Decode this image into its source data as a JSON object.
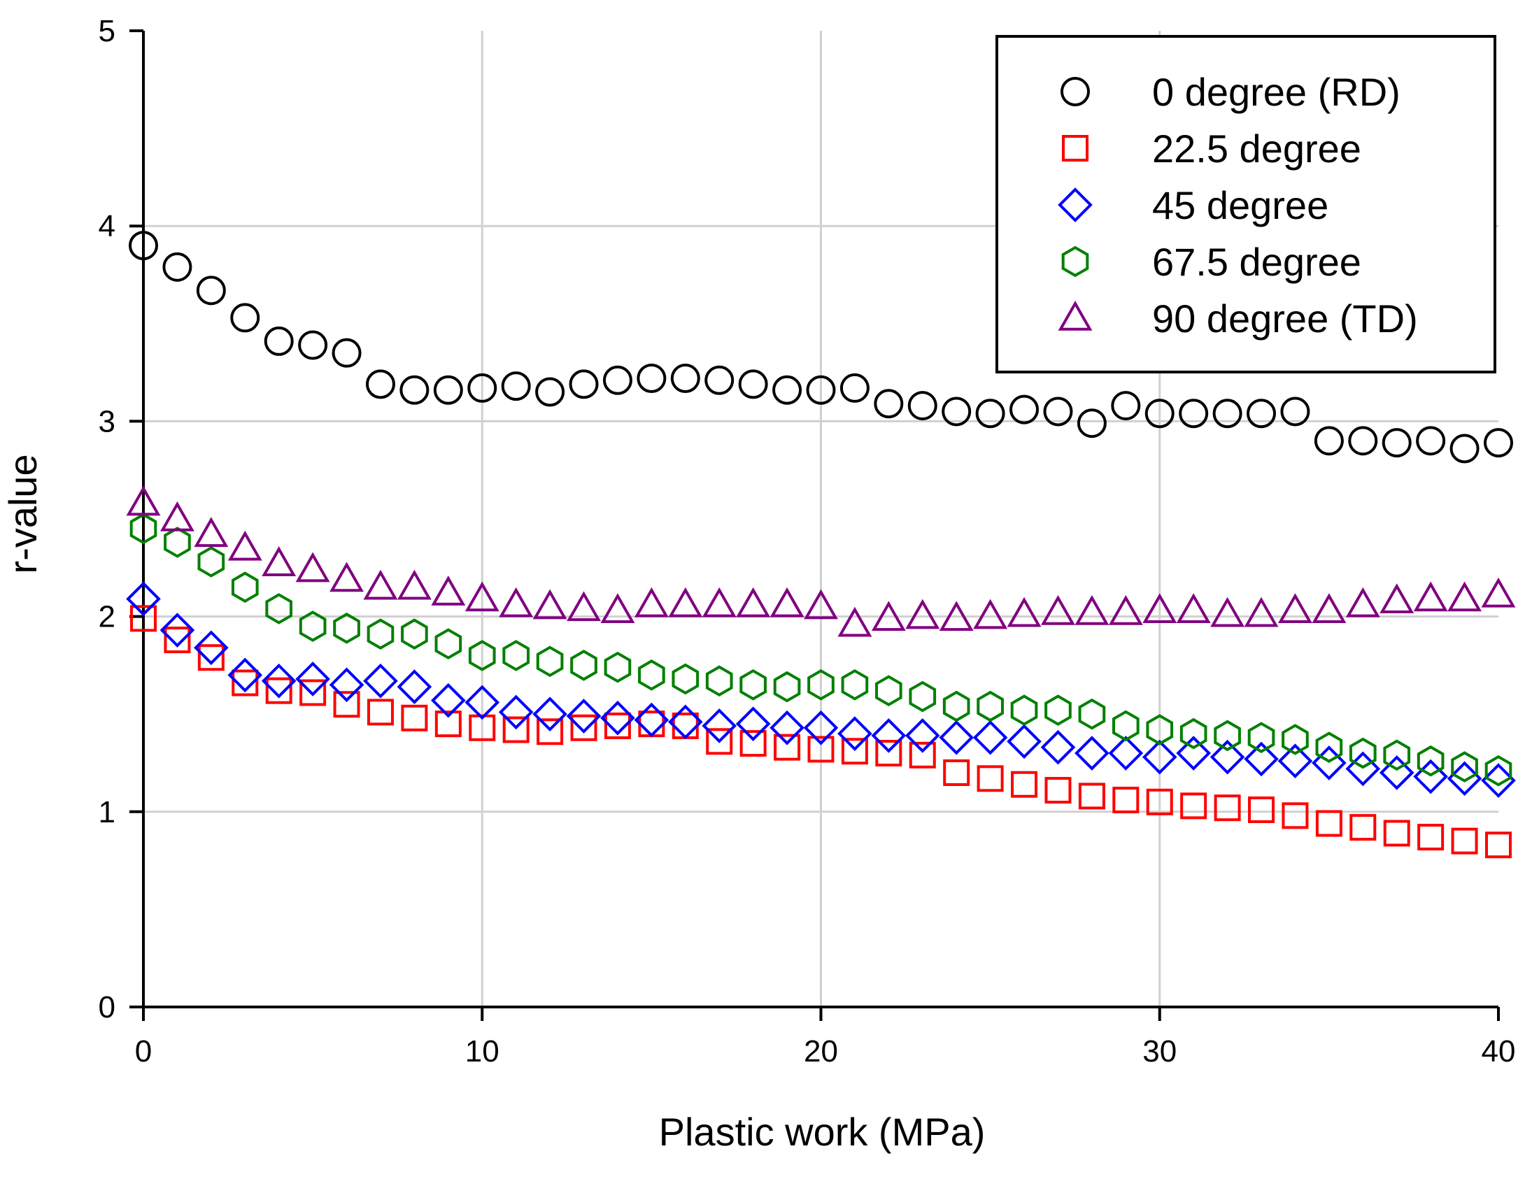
{
  "chart_data": {
    "type": "scatter",
    "title": "",
    "xlabel": "Plastic work (MPa)",
    "ylabel": "r-value",
    "xlim": [
      0,
      40
    ],
    "ylim": [
      0,
      5
    ],
    "xticks": [
      0,
      10,
      20,
      30,
      40
    ],
    "yticks": [
      0,
      1,
      2,
      3,
      4,
      5
    ],
    "grid": true,
    "legend_position": "top-right",
    "x": [
      0,
      1,
      2,
      3,
      4,
      5,
      6,
      7,
      8,
      9,
      10,
      11,
      12,
      13,
      14,
      15,
      16,
      17,
      18,
      19,
      20,
      21,
      22,
      23,
      24,
      25,
      26,
      27,
      28,
      29,
      30,
      31,
      32,
      33,
      34,
      35,
      36,
      37,
      38,
      39,
      40
    ],
    "series": [
      {
        "name": "0 degree (RD)",
        "marker": "circle",
        "color": "#000000",
        "values": [
          3.9,
          3.79,
          3.67,
          3.53,
          3.41,
          3.39,
          3.35,
          3.19,
          3.16,
          3.16,
          3.17,
          3.18,
          3.15,
          3.19,
          3.21,
          3.22,
          3.22,
          3.21,
          3.19,
          3.16,
          3.16,
          3.17,
          3.09,
          3.08,
          3.05,
          3.04,
          3.06,
          3.05,
          2.99,
          3.08,
          3.04,
          3.04,
          3.04,
          3.04,
          3.05,
          2.9,
          2.9,
          2.89,
          2.9,
          2.86,
          2.89
        ]
      },
      {
        "name": "22.5 degree",
        "marker": "square",
        "color": "#ff0000",
        "values": [
          1.99,
          1.88,
          1.79,
          1.66,
          1.62,
          1.61,
          1.55,
          1.51,
          1.48,
          1.45,
          1.43,
          1.42,
          1.41,
          1.43,
          1.44,
          1.45,
          1.44,
          1.36,
          1.35,
          1.33,
          1.32,
          1.31,
          1.3,
          1.29,
          1.2,
          1.17,
          1.14,
          1.11,
          1.08,
          1.06,
          1.05,
          1.03,
          1.02,
          1.01,
          0.98,
          0.94,
          0.92,
          0.89,
          0.87,
          0.85,
          0.83
        ]
      },
      {
        "name": "45 degree",
        "marker": "diamond",
        "color": "#0000ff",
        "values": [
          2.09,
          1.93,
          1.84,
          1.7,
          1.67,
          1.68,
          1.65,
          1.67,
          1.64,
          1.57,
          1.56,
          1.51,
          1.5,
          1.49,
          1.48,
          1.47,
          1.46,
          1.44,
          1.45,
          1.43,
          1.43,
          1.4,
          1.39,
          1.39,
          1.38,
          1.38,
          1.36,
          1.33,
          1.3,
          1.3,
          1.28,
          1.3,
          1.28,
          1.27,
          1.26,
          1.25,
          1.22,
          1.2,
          1.18,
          1.17,
          1.16
        ]
      },
      {
        "name": "67.5 degree",
        "marker": "hexagon",
        "color": "#008000",
        "values": [
          2.45,
          2.38,
          2.28,
          2.15,
          2.04,
          1.95,
          1.94,
          1.91,
          1.91,
          1.86,
          1.8,
          1.8,
          1.77,
          1.75,
          1.74,
          1.7,
          1.68,
          1.67,
          1.65,
          1.64,
          1.65,
          1.65,
          1.62,
          1.59,
          1.54,
          1.54,
          1.52,
          1.52,
          1.5,
          1.44,
          1.42,
          1.4,
          1.39,
          1.38,
          1.37,
          1.33,
          1.3,
          1.29,
          1.26,
          1.23,
          1.21
        ]
      },
      {
        "name": "90 degree (TD)",
        "marker": "triangle",
        "color": "#800080",
        "values": [
          2.58,
          2.5,
          2.42,
          2.35,
          2.27,
          2.24,
          2.19,
          2.15,
          2.15,
          2.12,
          2.09,
          2.06,
          2.05,
          2.04,
          2.03,
          2.06,
          2.06,
          2.06,
          2.06,
          2.06,
          2.05,
          1.96,
          1.99,
          2.0,
          1.99,
          2.0,
          2.01,
          2.02,
          2.02,
          2.02,
          2.03,
          2.03,
          2.01,
          2.01,
          2.03,
          2.03,
          2.06,
          2.08,
          2.09,
          2.09,
          2.11
        ]
      }
    ]
  }
}
